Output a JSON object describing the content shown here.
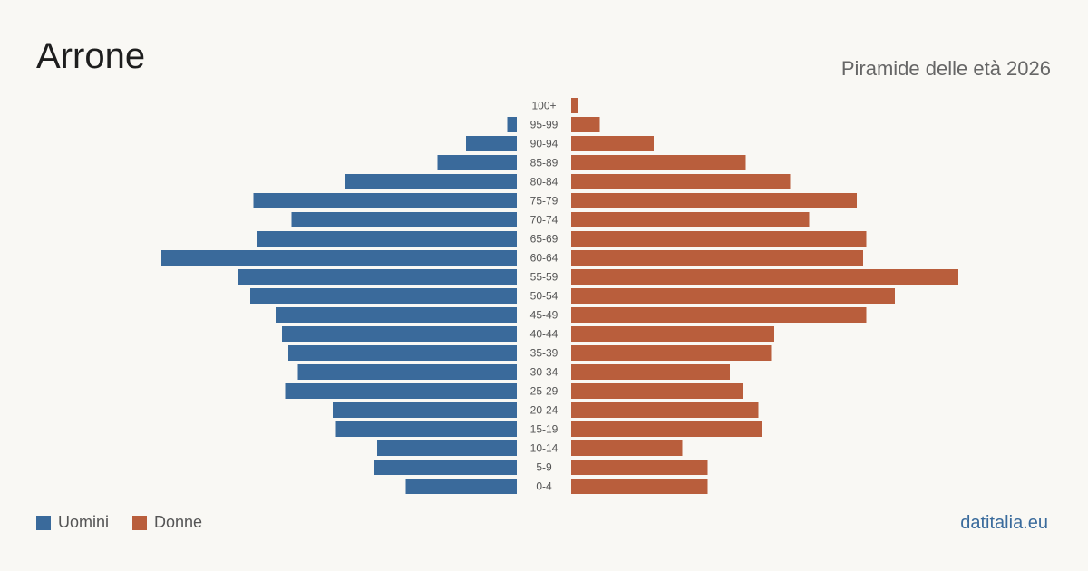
{
  "header": {
    "title": "Arrone",
    "subtitle": "Piramide delle età 2026"
  },
  "legend": {
    "men_label": "Uomini",
    "women_label": "Donne"
  },
  "brand": "datitalia.eu",
  "colors": {
    "men": "#3a6a9b",
    "women": "#b95e3c",
    "background": "#f9f8f4",
    "tick_text": "#555555"
  },
  "chart_data": {
    "type": "bar",
    "orientation": "horizontal-pyramid",
    "categories": [
      "100+",
      "95-99",
      "90-94",
      "85-89",
      "80-84",
      "75-79",
      "70-74",
      "65-69",
      "60-64",
      "55-59",
      "50-54",
      "45-49",
      "40-44",
      "35-39",
      "30-34",
      "25-29",
      "20-24",
      "15-19",
      "10-14",
      "5-9",
      "0-4"
    ],
    "series": [
      {
        "name": "Uomini",
        "values": [
          0,
          3,
          16,
          25,
          54,
          83,
          71,
          82,
          112,
          88,
          84,
          76,
          74,
          72,
          69,
          73,
          58,
          57,
          44,
          45,
          35
        ]
      },
      {
        "name": "Donne",
        "values": [
          2,
          9,
          26,
          55,
          69,
          90,
          75,
          93,
          92,
          122,
          102,
          93,
          64,
          63,
          50,
          54,
          59,
          60,
          35,
          43,
          43
        ]
      }
    ],
    "grid": false,
    "legend_position": "bottom-left"
  }
}
